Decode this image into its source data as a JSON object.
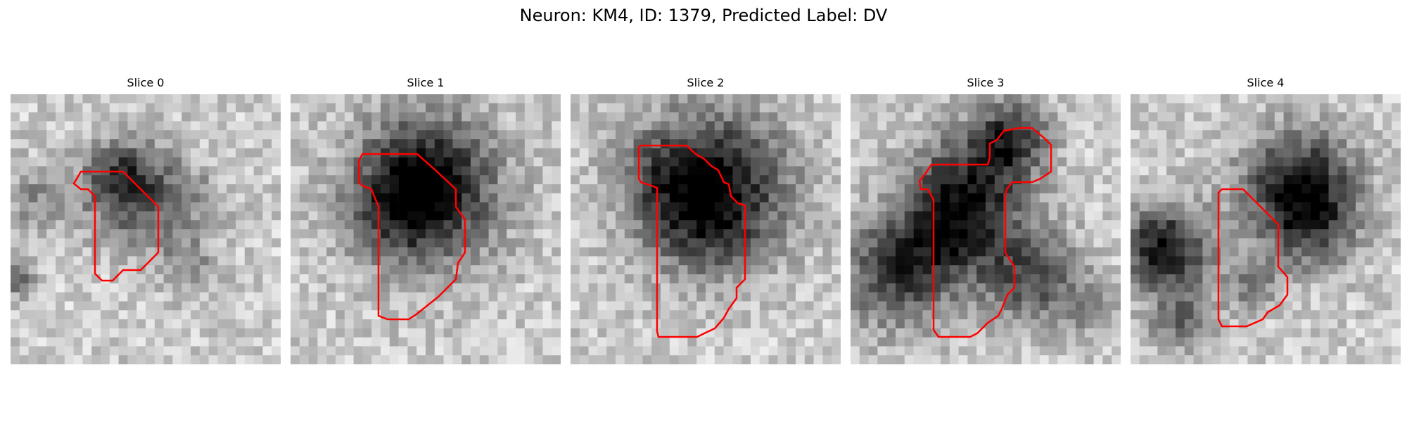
{
  "figure": {
    "suptitle": "Neuron: KM4, ID: 1379, Predicted Label: DV",
    "contour_color": "#ff0000",
    "colormap": "gray",
    "slices": [
      {
        "label": "Slice 0"
      },
      {
        "label": "Slice 1"
      },
      {
        "label": "Slice 2"
      },
      {
        "label": "Slice 3"
      },
      {
        "label": "Slice 4"
      }
    ]
  }
}
